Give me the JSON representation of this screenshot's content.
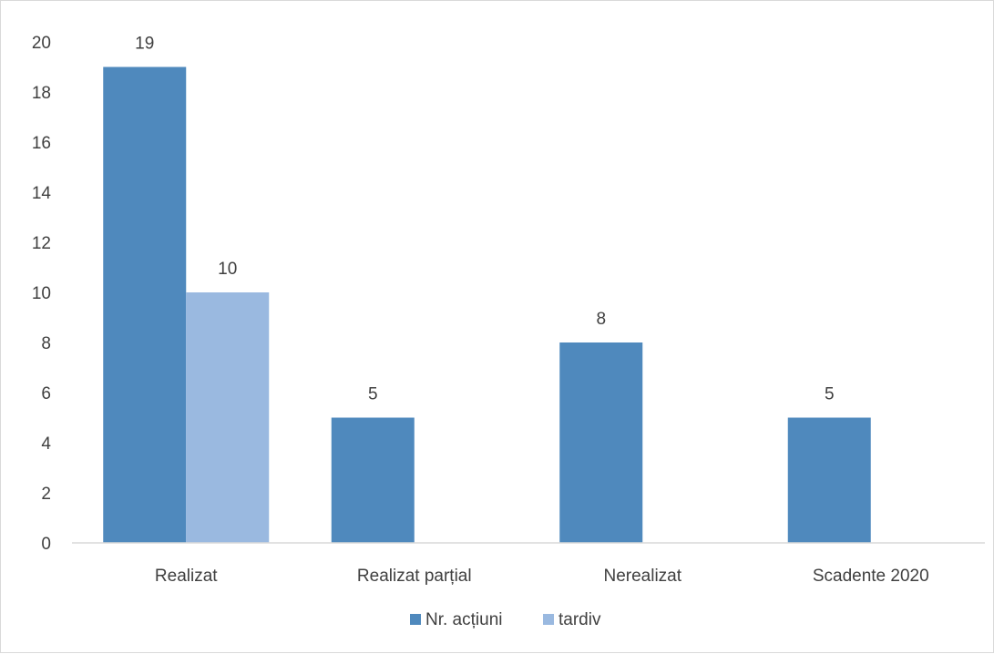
{
  "chart_data": {
    "type": "bar",
    "categories": [
      "Realizat",
      "Realizat parțial",
      "Nerealizat",
      "Scadente 2020"
    ],
    "series": [
      {
        "name": "Nr. acțiuni",
        "values": [
          19,
          5,
          8,
          5
        ],
        "color": "#4f89bd"
      },
      {
        "name": "tardiv",
        "values": [
          10,
          null,
          null,
          null
        ],
        "color": "#9ab9e0"
      }
    ],
    "ylim": [
      0,
      20
    ],
    "yticks": [
      0,
      2,
      4,
      6,
      8,
      10,
      12,
      14,
      16,
      18,
      20
    ],
    "data_labels": true,
    "grid": false,
    "legend_position": "bottom",
    "axis_color": "#d9d9d9",
    "text_color": "#404040"
  }
}
